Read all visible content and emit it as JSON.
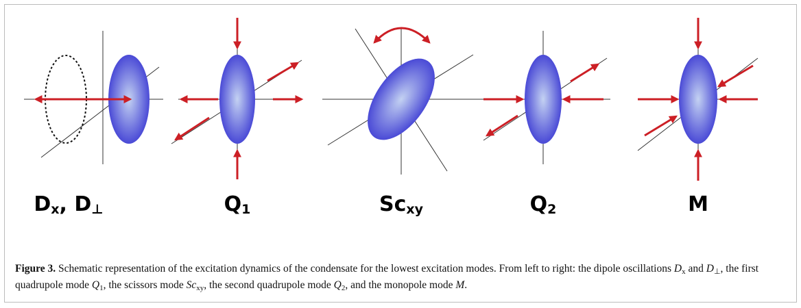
{
  "figure": {
    "panels": [
      {
        "label": [
          "D",
          "x",
          ", D",
          "⊥"
        ]
      },
      {
        "label": [
          "Q",
          "1"
        ]
      },
      {
        "label": [
          "Sc",
          "xy"
        ]
      },
      {
        "label": [
          "Q",
          "2"
        ]
      },
      {
        "label": [
          "M"
        ]
      }
    ],
    "caption": [
      {
        "text": "Figure 3.",
        "style": "bold"
      },
      {
        "text": " Schematic representation of the excitation dynamics of the condensate for the lowest excitation modes. From left to right: the dipole oscillations ",
        "style": "plain"
      },
      {
        "text": "D",
        "style": "italic"
      },
      {
        "text": "x",
        "style": "sub"
      },
      {
        "text": " and ",
        "style": "plain"
      },
      {
        "text": "D",
        "style": "italic"
      },
      {
        "text": "⊥",
        "style": "sub"
      },
      {
        "text": ", the first quadrupole mode ",
        "style": "plain"
      },
      {
        "text": "Q",
        "style": "italic"
      },
      {
        "text": "1",
        "style": "sub"
      },
      {
        "text": ", the scissors mode ",
        "style": "plain"
      },
      {
        "text": "Sc",
        "style": "italic"
      },
      {
        "text": "xy",
        "style": "sub"
      },
      {
        "text": ", the second quadrupole mode ",
        "style": "plain"
      },
      {
        "text": "Q",
        "style": "italic"
      },
      {
        "text": "2",
        "style": "sub"
      },
      {
        "text": ", and the monopole mode ",
        "style": "plain"
      },
      {
        "text": "M",
        "style": "italic"
      },
      {
        "text": ".",
        "style": "plain"
      }
    ]
  }
}
